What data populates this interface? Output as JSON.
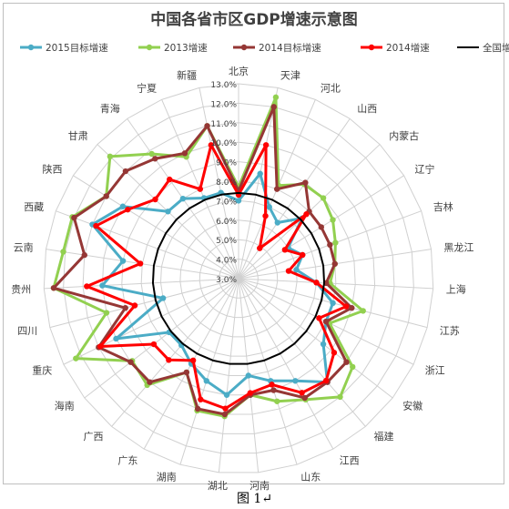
{
  "chart_data": {
    "type": "radar",
    "title": "中国各省市区GDP增速示意图",
    "categories": [
      "北京",
      "天津",
      "河北",
      "山西",
      "内蒙古",
      "辽宁",
      "吉林",
      "黑龙江",
      "上海",
      "江苏",
      "浙江",
      "安徽",
      "福建",
      "江西",
      "山东",
      "河南",
      "湖北",
      "湖南",
      "广东",
      "广西",
      "海南",
      "重庆",
      "四川",
      "贵州",
      "云南",
      "西藏",
      "陕西",
      "甘肃",
      "青海",
      "宁夏",
      "新疆"
    ],
    "ticks": [
      "3.0%",
      "4.0%",
      "5.0%",
      "6.0%",
      "7.0%",
      "8.0%",
      "9.0%",
      "10.0%",
      "11.0%",
      "12.0%",
      "13.0%"
    ],
    "rlim": [
      3.0,
      13.0
    ],
    "series": [
      {
        "name": "2015目标增速",
        "color": "#4bacc6",
        "values": [
          7.0,
          8.5,
          7.0,
          6.5,
          7.5,
          6.0,
          6.5,
          6.0,
          7.0,
          8.0,
          8.0,
          8.5,
          10.0,
          9.0,
          8.5,
          8.0,
          9.0,
          8.5,
          8.0,
          7.5,
          7.5,
          10.0,
          7.0,
          10.0,
          9.0,
          11.0,
          10.0,
          8.0,
          8.0,
          7.5,
          7.5
        ]
      },
      {
        "name": "2013增速",
        "color": "#92d050",
        "values": [
          7.7,
          12.5,
          8.2,
          8.9,
          9.0,
          8.7,
          8.3,
          8.0,
          7.7,
          9.6,
          8.2,
          10.4,
          11.0,
          10.1,
          9.6,
          9.0,
          10.1,
          10.1,
          8.5,
          10.2,
          9.9,
          12.3,
          10.0,
          12.5,
          12.1,
          12.1,
          11.0,
          12.1,
          10.8,
          9.8,
          11.0
        ]
      },
      {
        "name": "2014目标增速",
        "color": "#953735",
        "values": [
          7.5,
          12.0,
          8.0,
          9.0,
          8.0,
          8.0,
          8.0,
          8.0,
          7.5,
          9.0,
          8.0,
          10.0,
          10.0,
          10.0,
          9.0,
          9.0,
          10.0,
          10.0,
          8.5,
          10.0,
          10.0,
          11.0,
          9.0,
          12.5,
          11.0,
          12.0,
          11.0,
          11.0,
          10.5,
          10.0,
          11.0
        ]
      },
      {
        "name": "2014增速",
        "color": "#ff0000",
        "values": [
          7.3,
          10.0,
          6.5,
          4.9,
          7.8,
          5.8,
          6.5,
          5.6,
          7.0,
          8.7,
          7.6,
          9.2,
          9.9,
          9.7,
          8.7,
          8.9,
          9.7,
          9.5,
          7.8,
          8.5,
          8.5,
          10.9,
          8.5,
          10.8,
          8.1,
          10.8,
          9.7,
          8.9,
          9.2,
          8.0,
          10.0
        ]
      },
      {
        "name": "全国增速",
        "color": "#000000",
        "values": [
          7.4,
          7.4,
          7.4,
          7.4,
          7.4,
          7.4,
          7.4,
          7.4,
          7.4,
          7.4,
          7.4,
          7.4,
          7.4,
          7.4,
          7.4,
          7.4,
          7.4,
          7.4,
          7.4,
          7.4,
          7.4,
          7.4,
          7.4,
          7.4,
          7.4,
          7.4,
          7.4,
          7.4,
          7.4,
          7.4,
          7.4
        ]
      }
    ],
    "legend": "top",
    "grid": true
  },
  "caption": "图 1↵"
}
